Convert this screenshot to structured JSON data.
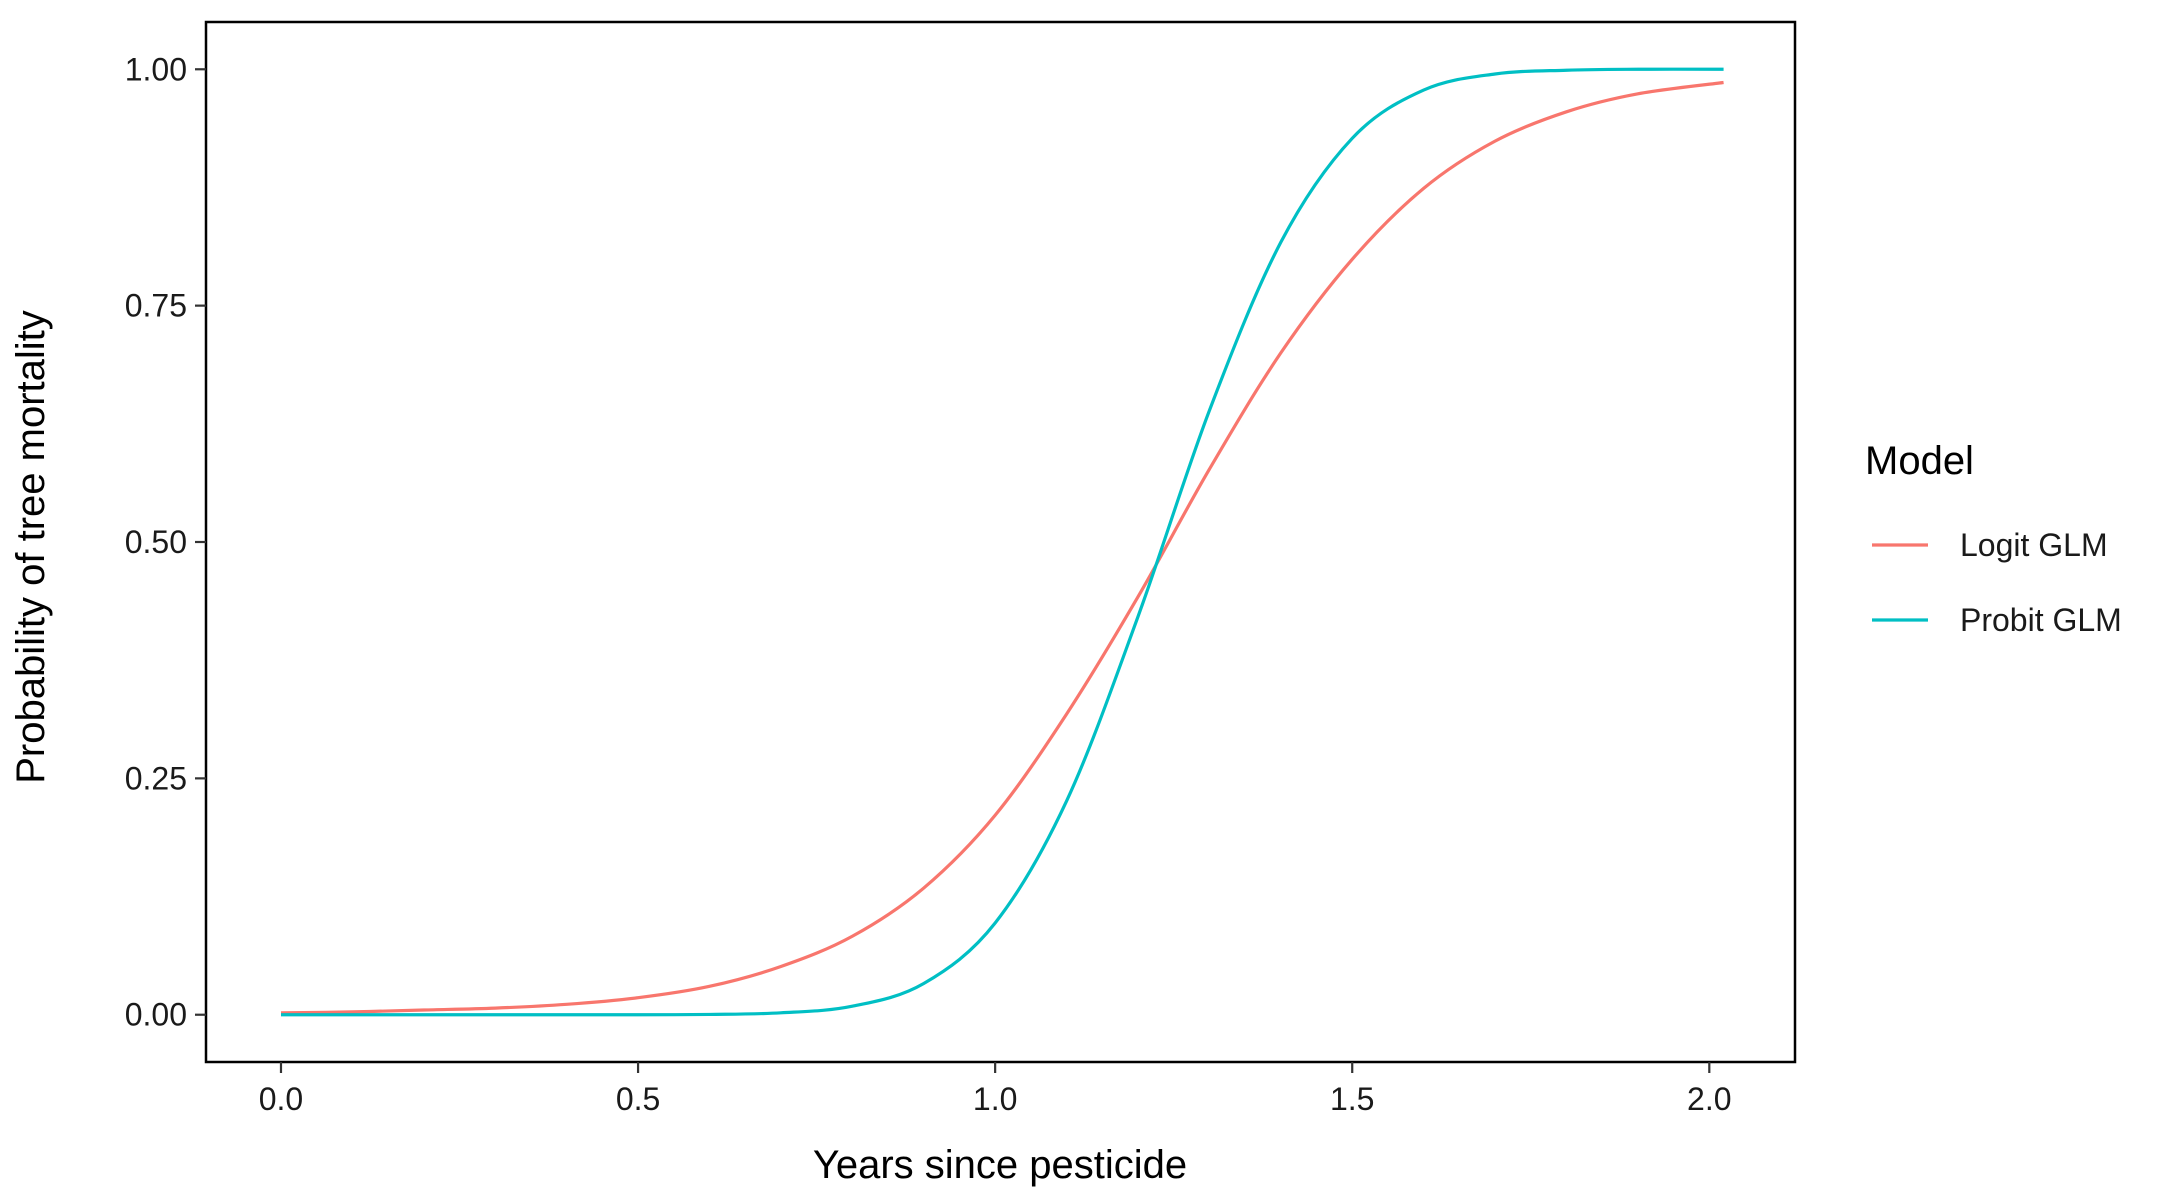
{
  "chart_data": {
    "type": "line",
    "title": "",
    "xlabel": "Years since pesticide",
    "ylabel": "Probability of tree mortality",
    "xlim": [
      -0.105,
      2.12
    ],
    "ylim": [
      -0.05,
      1.05
    ],
    "x_ticks": [
      0.0,
      0.5,
      1.0,
      1.5,
      2.0
    ],
    "x_tick_labels": [
      "0.0",
      "0.5",
      "1.0",
      "1.5",
      "2.0"
    ],
    "y_ticks": [
      0.0,
      0.25,
      0.5,
      0.75,
      1.0
    ],
    "y_tick_labels": [
      "0.00",
      "0.25",
      "0.50",
      "0.75",
      "1.00"
    ],
    "grid": false,
    "legend": {
      "title": "Model",
      "position": "right"
    },
    "x": [
      0.0,
      0.1,
      0.2,
      0.3,
      0.4,
      0.5,
      0.6,
      0.7,
      0.8,
      0.9,
      1.0,
      1.1,
      1.2,
      1.3,
      1.4,
      1.5,
      1.6,
      1.7,
      1.8,
      1.9,
      2.02
    ],
    "series": [
      {
        "name": "Logit GLM",
        "color": "#F8766D",
        "values": [
          0.002,
          0.003,
          0.005,
          0.007,
          0.011,
          0.018,
          0.03,
          0.051,
          0.083,
          0.134,
          0.211,
          0.318,
          0.442,
          0.577,
          0.7,
          0.799,
          0.874,
          0.924,
          0.955,
          0.974,
          0.986
        ]
      },
      {
        "name": "Probit GLM",
        "color": "#00BFC4",
        "values": [
          0.0,
          0.0,
          0.0,
          0.0,
          0.0,
          0.0,
          0.0003,
          0.002,
          0.009,
          0.033,
          0.097,
          0.226,
          0.421,
          0.639,
          0.817,
          0.927,
          0.978,
          0.995,
          0.999,
          1.0,
          1.0
        ]
      }
    ]
  }
}
